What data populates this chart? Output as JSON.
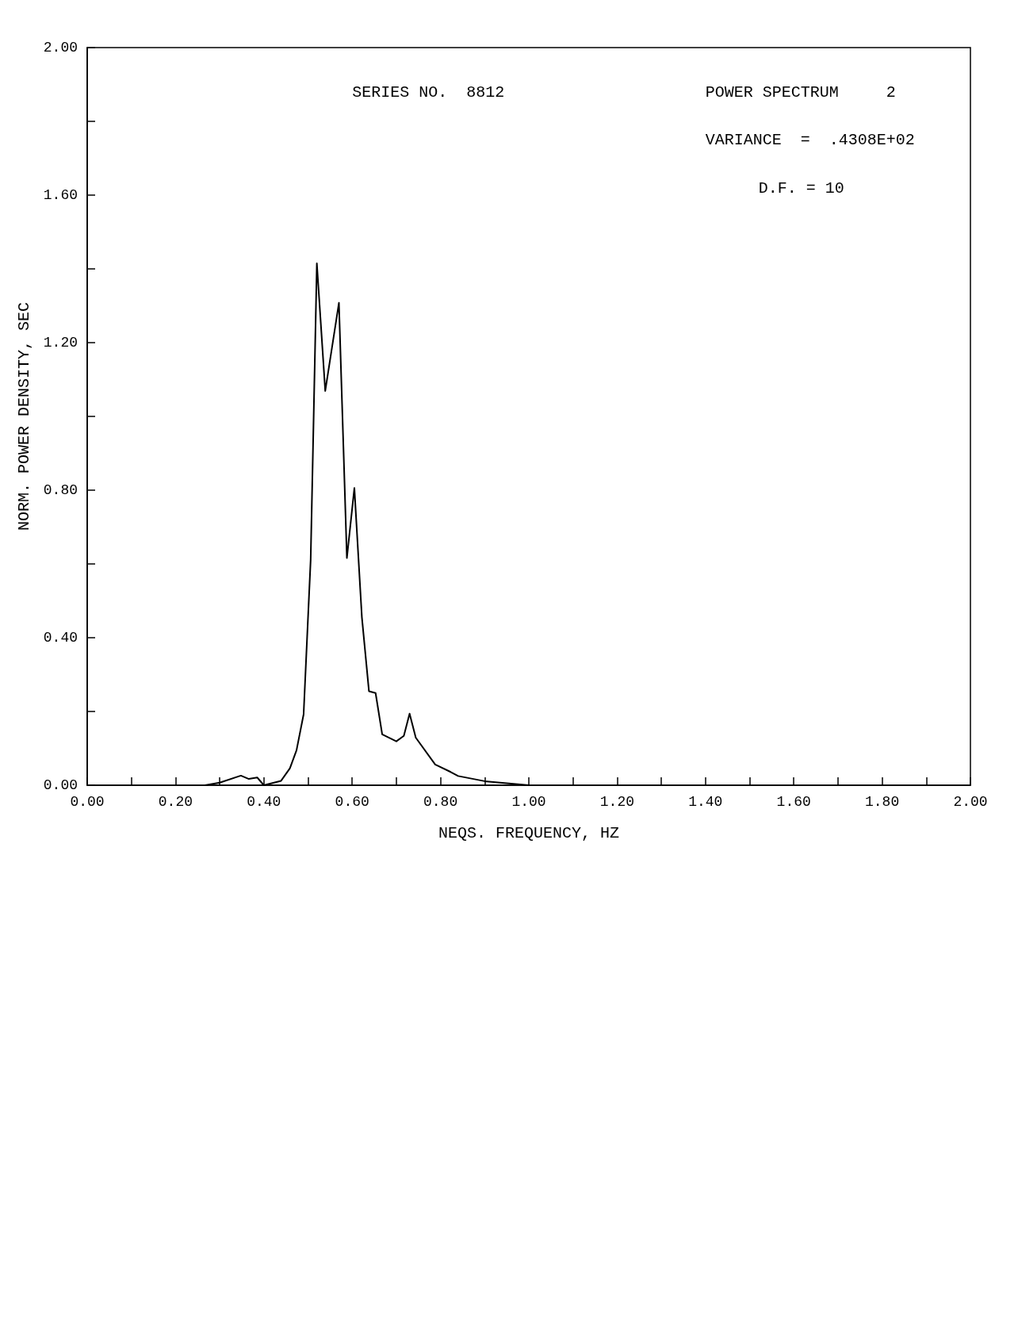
{
  "chart_data": {
    "type": "line",
    "xlabel": "NEQS. FREQUENCY, HZ",
    "ylabel": "NORM. POWER DENSITY, SEC",
    "annotations": [
      "SERIES NO.  8812",
      "POWER SPECTRUM     2",
      "VARIANCE  =  .4308E+02",
      "D.F. = 10"
    ],
    "series": [
      {
        "color": "#000000",
        "x": [
          0.267,
          0.3,
          0.348,
          0.366,
          0.385,
          0.4,
          0.439,
          0.459,
          0.474,
          0.49,
          0.506,
          0.52,
          0.539,
          0.57,
          0.588,
          0.605,
          0.622,
          0.638,
          0.653,
          0.668,
          0.7,
          0.717,
          0.73,
          0.744,
          0.788,
          0.823,
          0.84,
          0.9,
          1.0
        ],
        "values": [
          0,
          0.007,
          0.026,
          0.017,
          0.021,
          0,
          0.012,
          0.046,
          0.095,
          0.192,
          0.611,
          1.415,
          1.069,
          1.308,
          0.616,
          0.806,
          0.455,
          0.255,
          0.25,
          0.138,
          0.119,
          0.134,
          0.194,
          0.129,
          0.056,
          0.036,
          0.025,
          0.011,
          0
        ]
      }
    ],
    "xlim": [
      0,
      2
    ],
    "ylim": [
      0,
      2
    ],
    "xticks": [
      {
        "value": 0,
        "label": "0.00"
      },
      {
        "value": 0.1,
        "label": null
      },
      {
        "value": 0.2,
        "label": "0.20"
      },
      {
        "value": 0.3,
        "label": null
      },
      {
        "value": 0.4,
        "label": "0.40"
      },
      {
        "value": 0.5,
        "label": null
      },
      {
        "value": 0.6,
        "label": "0.60"
      },
      {
        "value": 0.7,
        "label": null
      },
      {
        "value": 0.8,
        "label": "0.80"
      },
      {
        "value": 0.9,
        "label": null
      },
      {
        "value": 1.0,
        "label": "1.00"
      },
      {
        "value": 1.1,
        "label": null
      },
      {
        "value": 1.2,
        "label": "1.20"
      },
      {
        "value": 1.3,
        "label": null
      },
      {
        "value": 1.4,
        "label": "1.40"
      },
      {
        "value": 1.5,
        "label": null
      },
      {
        "value": 1.6,
        "label": "1.60"
      },
      {
        "value": 1.7,
        "label": null
      },
      {
        "value": 1.8,
        "label": "1.80"
      },
      {
        "value": 1.9,
        "label": null
      },
      {
        "value": 2.0,
        "label": "2.00"
      }
    ],
    "yticks": [
      {
        "value": 0,
        "label": "0.00"
      },
      {
        "value": 0.2,
        "label": null
      },
      {
        "value": 0.4,
        "label": "0.40"
      },
      {
        "value": 0.6,
        "label": null
      },
      {
        "value": 0.8,
        "label": "0.80"
      },
      {
        "value": 1.0,
        "label": null
      },
      {
        "value": 1.2,
        "label": "1.20"
      },
      {
        "value": 1.4,
        "label": null
      },
      {
        "value": 1.6,
        "label": "1.60"
      },
      {
        "value": 1.8,
        "label": null
      },
      {
        "value": 2.0,
        "label": "2.00"
      }
    ],
    "grid": false,
    "marker": "none",
    "line_style": "solid"
  }
}
